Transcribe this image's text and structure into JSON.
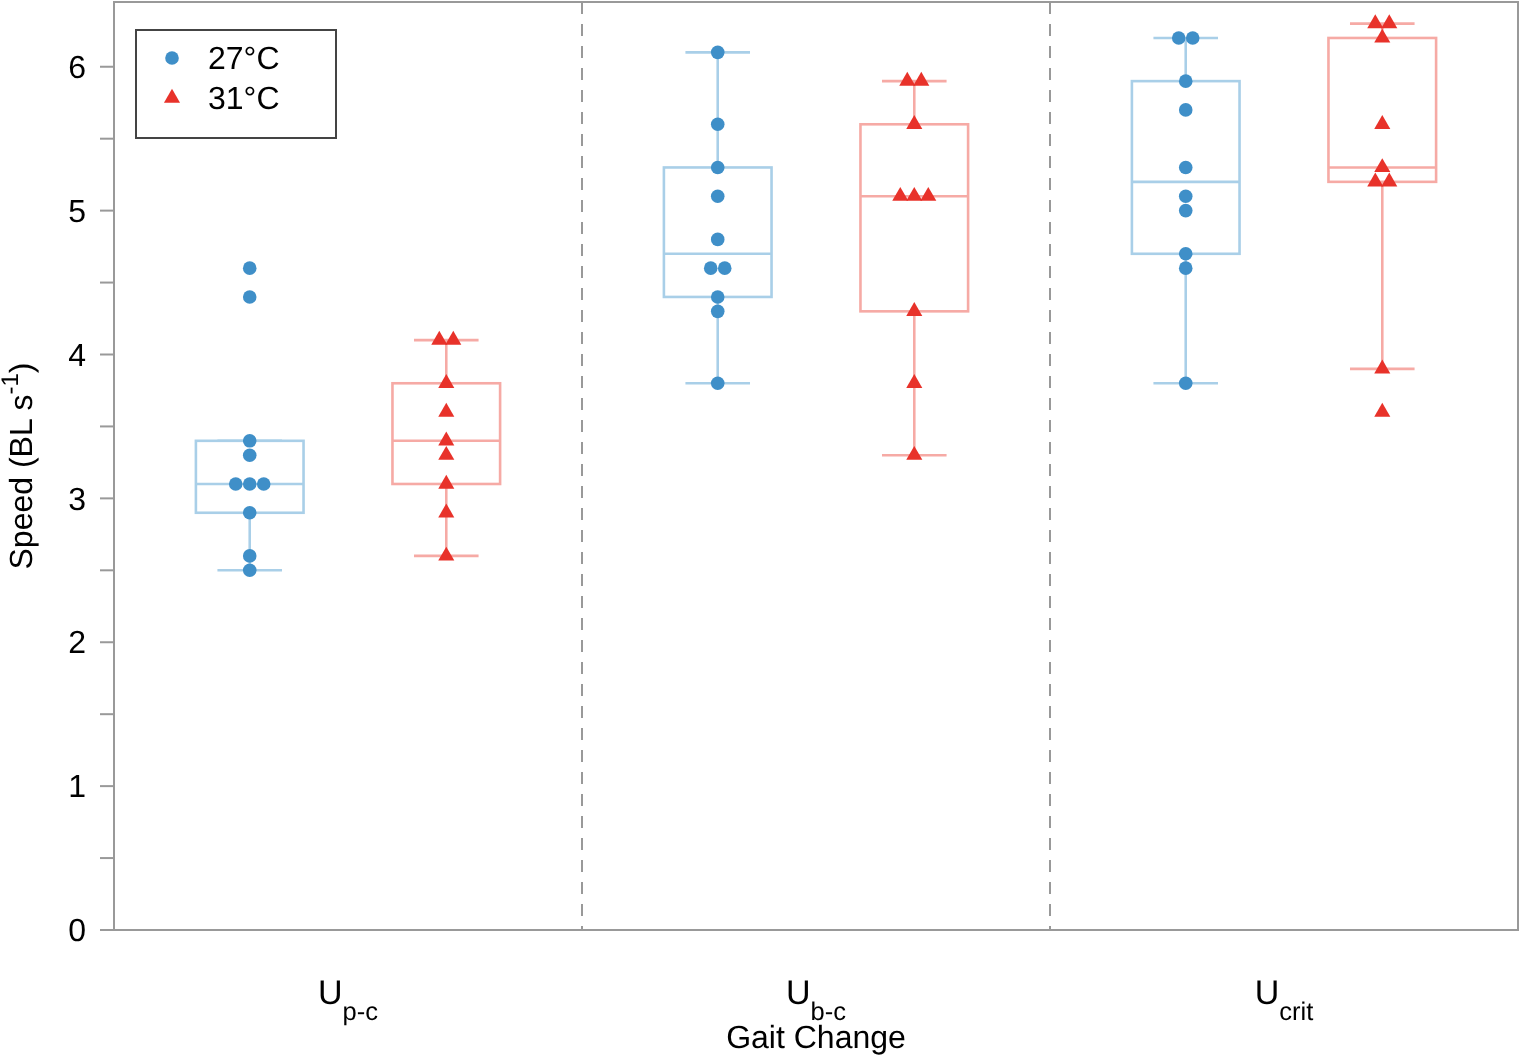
{
  "chart_data": {
    "type": "box",
    "xlabel": "Gait Change",
    "ylabel": "Speed (BL s$^{-1}$)",
    "categories": [
      "U$_{p-c}$",
      "U$_{b-c}$",
      "U$_{crit}$"
    ],
    "ylim": [
      0,
      6.45
    ],
    "yticks": [
      0,
      {
        "value": 0.5,
        "label": null
      },
      1,
      {
        "value": 1.5,
        "label": null
      },
      2,
      {
        "value": 2.5,
        "label": null
      },
      3,
      {
        "value": 3.5,
        "label": null
      },
      4,
      {
        "value": 4.5,
        "label": null
      },
      5,
      {
        "value": 5.5,
        "label": null
      },
      6
    ],
    "grid": false,
    "legend": "top left",
    "series": [
      {
        "color": "#a9cfe8",
        "boxes": [
          {
            "low": 2.5,
            "q1": 2.9,
            "median": 3.1,
            "q3": 3.4,
            "high": 3.4
          },
          {
            "low": 3.8,
            "q1": 4.4,
            "median": 4.7,
            "q3": 5.3,
            "high": 6.1
          },
          {
            "low": 3.8,
            "q1": 4.7,
            "median": 5.2,
            "q3": 5.9,
            "high": 6.2
          }
        ]
      },
      {
        "color": "#f6aaa5",
        "boxes": [
          {
            "low": 2.6,
            "q1": 3.1,
            "median": 3.4,
            "q3": 3.8,
            "high": 4.1
          },
          {
            "low": 3.3,
            "q1": 4.3,
            "median": 5.1,
            "q3": 5.6,
            "high": 5.9
          },
          {
            "low": 3.9,
            "q1": 5.2,
            "median": 5.3,
            "q3": 6.2,
            "high": 6.3
          }
        ]
      },
      {
        "type": "scatter",
        "name": "27°C",
        "color": "#3f8fc8",
        "marker": "circle",
        "x": [
          "U$_{p-c}$",
          "U$_{p-c}$",
          "U$_{p-c}$",
          "U$_{p-c}$",
          "U$_{p-c}$",
          "U$_{p-c}$",
          "U$_{p-c}$",
          "U$_{p-c}$",
          "U$_{p-c}$",
          "U$_{p-c}$",
          "U$_{b-c}$",
          "U$_{b-c}$",
          "U$_{b-c}$",
          "U$_{b-c}$",
          "U$_{b-c}$",
          "U$_{b-c}$",
          "U$_{b-c}$",
          "U$_{b-c}$",
          "U$_{b-c}$",
          "U$_{b-c}$",
          "U$_{crit}$",
          "U$_{crit}$",
          "U$_{crit}$",
          "U$_{crit}$",
          "U$_{crit}$",
          "U$_{crit}$",
          "U$_{crit}$",
          "U$_{crit}$",
          "U$_{crit}$",
          "U$_{crit}$"
        ],
        "values": [
          2.5,
          2.6,
          2.9,
          3.1,
          3.1,
          3.1,
          3.3,
          3.4,
          4.4,
          4.6,
          3.8,
          4.3,
          4.4,
          4.6,
          4.6,
          4.8,
          5.1,
          5.3,
          5.6,
          6.1,
          3.8,
          4.6,
          4.7,
          5.0,
          5.1,
          5.3,
          5.7,
          5.9,
          6.2,
          6.2
        ]
      },
      {
        "type": "scatter",
        "name": "31°C",
        "color": "#e8322a",
        "marker": "triangle",
        "x": [
          "U$_{p-c}$",
          "U$_{p-c}$",
          "U$_{p-c}$",
          "U$_{p-c}$",
          "U$_{p-c}$",
          "U$_{p-c}$",
          "U$_{p-c}$",
          "U$_{p-c}$",
          "U$_{p-c}$",
          "U$_{b-c}$",
          "U$_{b-c}$",
          "U$_{b-c}$",
          "U$_{b-c}$",
          "U$_{b-c}$",
          "U$_{b-c}$",
          "U$_{b-c}$",
          "U$_{b-c}$",
          "U$_{b-c}$",
          "U$_{crit}$",
          "U$_{crit}$",
          "U$_{crit}$",
          "U$_{crit}$",
          "U$_{crit}$",
          "U$_{crit}$",
          "U$_{crit}$",
          "U$_{crit}$",
          "U$_{crit}$"
        ],
        "values": [
          2.6,
          2.9,
          3.1,
          3.3,
          3.4,
          3.6,
          3.8,
          4.1,
          4.1,
          3.3,
          3.8,
          4.3,
          5.1,
          5.1,
          5.1,
          5.6,
          5.9,
          5.9,
          3.6,
          3.9,
          5.2,
          5.2,
          5.3,
          5.6,
          6.2,
          6.3,
          6.3
        ]
      }
    ]
  }
}
